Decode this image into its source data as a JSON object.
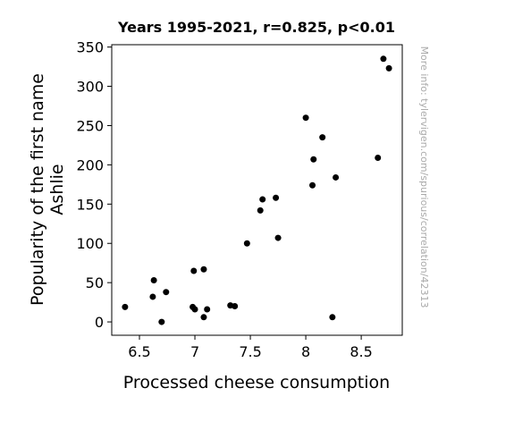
{
  "chart_data": {
    "type": "scatter",
    "title": "Years 1995-2021, r=0.825, p<0.01",
    "xlabel": "Processed cheese consumption",
    "ylabel_lines": [
      "Popularity of the first name",
      "Ashlie"
    ],
    "watermark": "More info: tylervigen.com/spurious/correlation/42313",
    "xlim": [
      6.25,
      8.87
    ],
    "ylim": [
      -17,
      353
    ],
    "xticks": [
      6.5,
      7,
      7.5,
      8,
      8.5
    ],
    "xtick_labels": [
      "6.5",
      "7",
      "7.5",
      "8",
      "8.5"
    ],
    "yticks": [
      0,
      50,
      100,
      150,
      200,
      250,
      300,
      350
    ],
    "ytick_labels": [
      "0",
      "50",
      "100",
      "150",
      "200",
      "250",
      "300",
      "350"
    ],
    "marker_color": "#000000",
    "points": [
      {
        "x": 6.37,
        "y": 19
      },
      {
        "x": 6.62,
        "y": 32
      },
      {
        "x": 6.63,
        "y": 53
      },
      {
        "x": 6.7,
        "y": 0
      },
      {
        "x": 6.74,
        "y": 38
      },
      {
        "x": 6.98,
        "y": 19
      },
      {
        "x": 6.99,
        "y": 65
      },
      {
        "x": 7.0,
        "y": 16
      },
      {
        "x": 7.08,
        "y": 67
      },
      {
        "x": 7.08,
        "y": 6
      },
      {
        "x": 7.11,
        "y": 16
      },
      {
        "x": 7.32,
        "y": 21
      },
      {
        "x": 7.36,
        "y": 20
      },
      {
        "x": 7.47,
        "y": 100
      },
      {
        "x": 7.59,
        "y": 142
      },
      {
        "x": 7.61,
        "y": 156
      },
      {
        "x": 7.73,
        "y": 158
      },
      {
        "x": 7.75,
        "y": 107
      },
      {
        "x": 8.0,
        "y": 260
      },
      {
        "x": 8.06,
        "y": 174
      },
      {
        "x": 8.07,
        "y": 207
      },
      {
        "x": 8.15,
        "y": 235
      },
      {
        "x": 8.24,
        "y": 6
      },
      {
        "x": 8.27,
        "y": 184
      },
      {
        "x": 8.65,
        "y": 209
      },
      {
        "x": 8.7,
        "y": 335
      },
      {
        "x": 8.75,
        "y": 323
      }
    ]
  }
}
